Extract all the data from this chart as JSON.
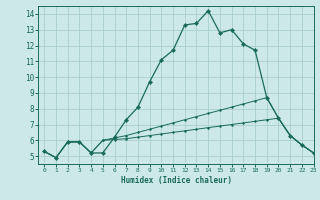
{
  "xlabel": "Humidex (Indice chaleur)",
  "xlim": [
    -0.5,
    23
  ],
  "ylim": [
    4.5,
    14.5
  ],
  "yticks": [
    5,
    6,
    7,
    8,
    9,
    10,
    11,
    12,
    13,
    14
  ],
  "xticks": [
    0,
    1,
    2,
    3,
    4,
    5,
    6,
    7,
    8,
    9,
    10,
    11,
    12,
    13,
    14,
    15,
    16,
    17,
    18,
    19,
    20,
    21,
    22,
    23
  ],
  "background_color": "#cce8e8",
  "grid_color": "#aacece",
  "line_color": "#1a6b5a",
  "line1_x": [
    0,
    1,
    2,
    3,
    4,
    5,
    6,
    7,
    8,
    9,
    10,
    11,
    12,
    13,
    14,
    15,
    16,
    17,
    18,
    19,
    20,
    21,
    22,
    23
  ],
  "line1_y": [
    5.3,
    4.9,
    5.9,
    5.9,
    5.2,
    5.2,
    6.2,
    7.3,
    8.1,
    9.7,
    11.1,
    11.7,
    13.3,
    13.4,
    14.2,
    12.8,
    13.0,
    12.1,
    11.7,
    8.7,
    7.4,
    6.3,
    5.7,
    5.2
  ],
  "line2_x": [
    0,
    1,
    2,
    3,
    4,
    5,
    6,
    7,
    8,
    9,
    10,
    11,
    12,
    13,
    14,
    15,
    16,
    17,
    18,
    19,
    20,
    21,
    22,
    23
  ],
  "line2_y": [
    5.3,
    4.9,
    5.9,
    5.9,
    5.2,
    6.0,
    6.15,
    6.3,
    6.5,
    6.7,
    6.9,
    7.1,
    7.3,
    7.5,
    7.7,
    7.9,
    8.1,
    8.3,
    8.5,
    8.7,
    7.4,
    6.3,
    5.7,
    5.2
  ],
  "line3_x": [
    0,
    1,
    2,
    3,
    4,
    5,
    6,
    7,
    8,
    9,
    10,
    11,
    12,
    13,
    14,
    15,
    16,
    17,
    18,
    19,
    20,
    21,
    22,
    23
  ],
  "line3_y": [
    5.3,
    4.9,
    5.9,
    5.9,
    5.2,
    6.0,
    6.05,
    6.1,
    6.2,
    6.3,
    6.4,
    6.5,
    6.6,
    6.7,
    6.8,
    6.9,
    7.0,
    7.1,
    7.2,
    7.3,
    7.4,
    6.3,
    5.7,
    5.2
  ],
  "figsize": [
    3.2,
    2.0
  ],
  "dpi": 100
}
